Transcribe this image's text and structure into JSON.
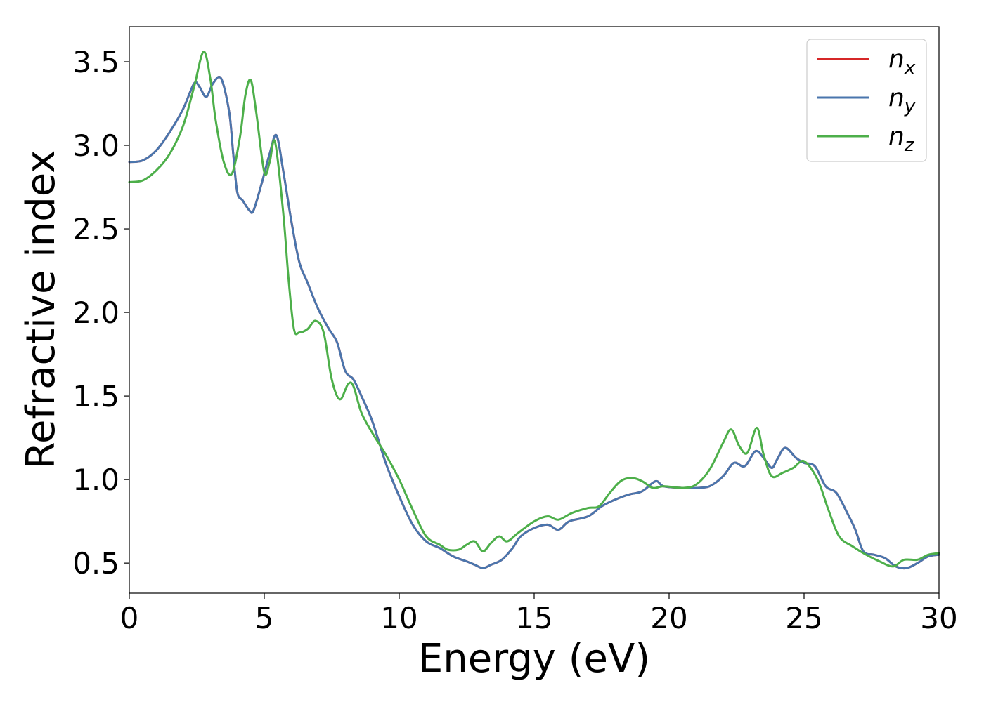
{
  "chart_data": {
    "type": "line",
    "xlabel": "Energy (eV)",
    "ylabel": "Refractive index",
    "xlim": [
      0,
      30
    ],
    "ylim": [
      0.32,
      3.71
    ],
    "xticks": [
      "0",
      "5",
      "10",
      "15",
      "20",
      "25",
      "30"
    ],
    "yticks": [
      "0.5",
      "1.0",
      "1.5",
      "2.0",
      "2.5",
      "3.0",
      "3.5"
    ],
    "legend_position": "top-right",
    "grid": false,
    "series": [
      {
        "name": "n_x",
        "label_base": "n",
        "label_sub": "x",
        "color": "#d62728",
        "points": [
          [
            0,
            2.9
          ],
          [
            0.5,
            2.91
          ],
          [
            1.0,
            2.97
          ],
          [
            1.5,
            3.08
          ],
          [
            2.0,
            3.22
          ],
          [
            2.4,
            3.37
          ],
          [
            2.6,
            3.35
          ],
          [
            2.85,
            3.29
          ],
          [
            3.1,
            3.37
          ],
          [
            3.4,
            3.4
          ],
          [
            3.7,
            3.2
          ],
          [
            3.85,
            2.95
          ],
          [
            4.0,
            2.72
          ],
          [
            4.2,
            2.67
          ],
          [
            4.45,
            2.61
          ],
          [
            4.6,
            2.61
          ],
          [
            4.9,
            2.77
          ],
          [
            5.2,
            2.95
          ],
          [
            5.45,
            3.06
          ],
          [
            5.7,
            2.85
          ],
          [
            6.0,
            2.55
          ],
          [
            6.3,
            2.3
          ],
          [
            6.6,
            2.18
          ],
          [
            7.0,
            2.02
          ],
          [
            7.4,
            1.9
          ],
          [
            7.7,
            1.82
          ],
          [
            8.0,
            1.65
          ],
          [
            8.3,
            1.6
          ],
          [
            8.6,
            1.5
          ],
          [
            9.0,
            1.35
          ],
          [
            9.5,
            1.1
          ],
          [
            10.0,
            0.9
          ],
          [
            10.5,
            0.73
          ],
          [
            11.0,
            0.63
          ],
          [
            11.5,
            0.59
          ],
          [
            12.0,
            0.54
          ],
          [
            12.5,
            0.51
          ],
          [
            12.8,
            0.49
          ],
          [
            13.1,
            0.47
          ],
          [
            13.4,
            0.49
          ],
          [
            13.8,
            0.52
          ],
          [
            14.2,
            0.59
          ],
          [
            14.5,
            0.66
          ],
          [
            15.0,
            0.71
          ],
          [
            15.5,
            0.73
          ],
          [
            15.9,
            0.7
          ],
          [
            16.3,
            0.75
          ],
          [
            17.0,
            0.78
          ],
          [
            17.5,
            0.84
          ],
          [
            18.0,
            0.88
          ],
          [
            18.5,
            0.91
          ],
          [
            19.0,
            0.93
          ],
          [
            19.5,
            0.99
          ],
          [
            19.8,
            0.96
          ],
          [
            20.5,
            0.95
          ],
          [
            21.0,
            0.95
          ],
          [
            21.5,
            0.96
          ],
          [
            22.0,
            1.02
          ],
          [
            22.4,
            1.1
          ],
          [
            22.8,
            1.08
          ],
          [
            23.2,
            1.17
          ],
          [
            23.5,
            1.13
          ],
          [
            23.8,
            1.07
          ],
          [
            24.0,
            1.12
          ],
          [
            24.3,
            1.19
          ],
          [
            24.7,
            1.13
          ],
          [
            25.0,
            1.1
          ],
          [
            25.4,
            1.08
          ],
          [
            25.8,
            0.96
          ],
          [
            26.2,
            0.92
          ],
          [
            26.6,
            0.8
          ],
          [
            26.9,
            0.7
          ],
          [
            27.2,
            0.57
          ],
          [
            27.6,
            0.55
          ],
          [
            28.0,
            0.53
          ],
          [
            28.4,
            0.48
          ],
          [
            28.8,
            0.47
          ],
          [
            29.2,
            0.5
          ],
          [
            29.6,
            0.54
          ],
          [
            30.0,
            0.55
          ]
        ]
      },
      {
        "name": "n_y",
        "label_base": "n",
        "label_sub": "y",
        "color": "#4a76ad",
        "points": [
          [
            0,
            2.9
          ],
          [
            0.5,
            2.91
          ],
          [
            1.0,
            2.97
          ],
          [
            1.5,
            3.08
          ],
          [
            2.0,
            3.22
          ],
          [
            2.4,
            3.37
          ],
          [
            2.6,
            3.35
          ],
          [
            2.85,
            3.29
          ],
          [
            3.1,
            3.37
          ],
          [
            3.4,
            3.4
          ],
          [
            3.7,
            3.2
          ],
          [
            3.85,
            2.95
          ],
          [
            4.0,
            2.72
          ],
          [
            4.2,
            2.67
          ],
          [
            4.45,
            2.61
          ],
          [
            4.6,
            2.61
          ],
          [
            4.9,
            2.77
          ],
          [
            5.2,
            2.95
          ],
          [
            5.45,
            3.06
          ],
          [
            5.7,
            2.85
          ],
          [
            6.0,
            2.55
          ],
          [
            6.3,
            2.3
          ],
          [
            6.6,
            2.18
          ],
          [
            7.0,
            2.02
          ],
          [
            7.4,
            1.9
          ],
          [
            7.7,
            1.82
          ],
          [
            8.0,
            1.65
          ],
          [
            8.3,
            1.6
          ],
          [
            8.6,
            1.5
          ],
          [
            9.0,
            1.35
          ],
          [
            9.5,
            1.1
          ],
          [
            10.0,
            0.9
          ],
          [
            10.5,
            0.73
          ],
          [
            11.0,
            0.63
          ],
          [
            11.5,
            0.59
          ],
          [
            12.0,
            0.54
          ],
          [
            12.5,
            0.51
          ],
          [
            12.8,
            0.49
          ],
          [
            13.1,
            0.47
          ],
          [
            13.4,
            0.49
          ],
          [
            13.8,
            0.52
          ],
          [
            14.2,
            0.59
          ],
          [
            14.5,
            0.66
          ],
          [
            15.0,
            0.71
          ],
          [
            15.5,
            0.73
          ],
          [
            15.9,
            0.7
          ],
          [
            16.3,
            0.75
          ],
          [
            17.0,
            0.78
          ],
          [
            17.5,
            0.84
          ],
          [
            18.0,
            0.88
          ],
          [
            18.5,
            0.91
          ],
          [
            19.0,
            0.93
          ],
          [
            19.5,
            0.99
          ],
          [
            19.8,
            0.96
          ],
          [
            20.5,
            0.95
          ],
          [
            21.0,
            0.95
          ],
          [
            21.5,
            0.96
          ],
          [
            22.0,
            1.02
          ],
          [
            22.4,
            1.1
          ],
          [
            22.8,
            1.08
          ],
          [
            23.2,
            1.17
          ],
          [
            23.5,
            1.13
          ],
          [
            23.8,
            1.07
          ],
          [
            24.0,
            1.12
          ],
          [
            24.3,
            1.19
          ],
          [
            24.7,
            1.13
          ],
          [
            25.0,
            1.1
          ],
          [
            25.4,
            1.08
          ],
          [
            25.8,
            0.96
          ],
          [
            26.2,
            0.92
          ],
          [
            26.6,
            0.8
          ],
          [
            26.9,
            0.7
          ],
          [
            27.2,
            0.57
          ],
          [
            27.6,
            0.55
          ],
          [
            28.0,
            0.53
          ],
          [
            28.4,
            0.48
          ],
          [
            28.8,
            0.47
          ],
          [
            29.2,
            0.5
          ],
          [
            29.6,
            0.54
          ],
          [
            30.0,
            0.55
          ]
        ]
      },
      {
        "name": "n_z",
        "label_base": "n",
        "label_sub": "z",
        "color": "#4daf4a",
        "points": [
          [
            0,
            2.78
          ],
          [
            0.5,
            2.79
          ],
          [
            1.0,
            2.85
          ],
          [
            1.5,
            2.95
          ],
          [
            2.0,
            3.12
          ],
          [
            2.4,
            3.35
          ],
          [
            2.75,
            3.56
          ],
          [
            3.0,
            3.4
          ],
          [
            3.2,
            3.15
          ],
          [
            3.5,
            2.9
          ],
          [
            3.8,
            2.83
          ],
          [
            4.1,
            3.05
          ],
          [
            4.3,
            3.3
          ],
          [
            4.5,
            3.39
          ],
          [
            4.7,
            3.2
          ],
          [
            5.0,
            2.84
          ],
          [
            5.2,
            2.9
          ],
          [
            5.4,
            3.02
          ],
          [
            5.7,
            2.6
          ],
          [
            5.9,
            2.2
          ],
          [
            6.1,
            1.9
          ],
          [
            6.3,
            1.88
          ],
          [
            6.6,
            1.9
          ],
          [
            6.9,
            1.95
          ],
          [
            7.2,
            1.88
          ],
          [
            7.5,
            1.6
          ],
          [
            7.8,
            1.48
          ],
          [
            8.1,
            1.57
          ],
          [
            8.3,
            1.56
          ],
          [
            8.6,
            1.4
          ],
          [
            9.0,
            1.28
          ],
          [
            9.5,
            1.15
          ],
          [
            10.0,
            1.0
          ],
          [
            10.5,
            0.82
          ],
          [
            11.0,
            0.66
          ],
          [
            11.5,
            0.61
          ],
          [
            11.8,
            0.58
          ],
          [
            12.2,
            0.58
          ],
          [
            12.5,
            0.61
          ],
          [
            12.8,
            0.63
          ],
          [
            13.1,
            0.57
          ],
          [
            13.4,
            0.62
          ],
          [
            13.7,
            0.66
          ],
          [
            14.0,
            0.63
          ],
          [
            14.4,
            0.68
          ],
          [
            15.0,
            0.75
          ],
          [
            15.5,
            0.78
          ],
          [
            15.9,
            0.76
          ],
          [
            16.4,
            0.8
          ],
          [
            17.0,
            0.83
          ],
          [
            17.4,
            0.84
          ],
          [
            17.8,
            0.92
          ],
          [
            18.2,
            0.99
          ],
          [
            18.6,
            1.01
          ],
          [
            19.0,
            0.99
          ],
          [
            19.4,
            0.95
          ],
          [
            19.8,
            0.96
          ],
          [
            20.5,
            0.95
          ],
          [
            21.0,
            0.97
          ],
          [
            21.5,
            1.06
          ],
          [
            22.0,
            1.22
          ],
          [
            22.3,
            1.3
          ],
          [
            22.6,
            1.2
          ],
          [
            22.9,
            1.16
          ],
          [
            23.25,
            1.31
          ],
          [
            23.5,
            1.15
          ],
          [
            23.8,
            1.02
          ],
          [
            24.2,
            1.04
          ],
          [
            24.6,
            1.07
          ],
          [
            25.0,
            1.11
          ],
          [
            25.5,
            1.0
          ],
          [
            25.9,
            0.82
          ],
          [
            26.3,
            0.66
          ],
          [
            26.8,
            0.6
          ],
          [
            27.3,
            0.55
          ],
          [
            27.8,
            0.51
          ],
          [
            28.3,
            0.48
          ],
          [
            28.7,
            0.52
          ],
          [
            29.2,
            0.52
          ],
          [
            29.6,
            0.55
          ],
          [
            30.0,
            0.56
          ]
        ]
      }
    ]
  }
}
